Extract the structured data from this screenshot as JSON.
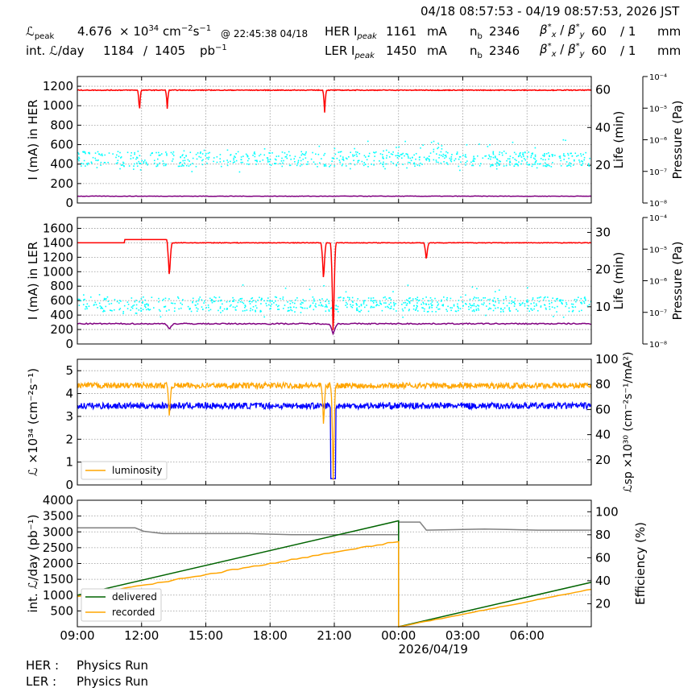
{
  "header": {
    "time_range": "04/18 08:57:53 - 04/19 08:57:53, 2026 JST",
    "lpeak_label": "ℒ",
    "lpeak_sub": "peak",
    "lpeak_value": "4.676",
    "lpeak_unit": "× 10",
    "lpeak_exp": "34",
    "lpeak_unit2": " cm",
    "lpeak_exp2": "−2",
    "lpeak_unit3": "s",
    "lpeak_exp3": "−1",
    "lpeak_time": "@ 22:45:38 04/18",
    "intl_label": "int. ℒ/day",
    "intl_value1": "1184",
    "intl_sep": "/",
    "intl_value2": "1405",
    "intl_unit": "pb",
    "intl_exp": "−1",
    "her_label": "HER I",
    "her_sub": "peak",
    "her_value": "1161",
    "her_unit": "mA",
    "ler_label": "LER I",
    "ler_sub": "peak",
    "ler_value": "1450",
    "ler_unit": "mA",
    "nb_label": "n",
    "nb_sub": "b",
    "her_nb": "2346",
    "ler_nb": "2346",
    "beta_label": "β*x / β*y",
    "her_beta1": "60",
    "her_beta2": "/ 1",
    "her_beta_unit": "mm",
    "ler_beta1": "60",
    "ler_beta2": "/ 1",
    "ler_beta_unit": "mm"
  },
  "footer": {
    "her_label": "HER :",
    "her_mode": "Physics Run",
    "ler_label": "LER :",
    "ler_mode": "Physics Run"
  },
  "colors": {
    "current": "#ff0000",
    "lifetime": "#00ffff",
    "pressure": "#800080",
    "luminosity": "#ffa500",
    "specific_lumi": "#0000ff",
    "delivered": "#006400",
    "recorded": "#ffa500",
    "efficiency": "#808080"
  },
  "chart_data": [
    {
      "type": "line",
      "name": "her",
      "ylabel": "I (mA) in HER",
      "ylabel_right": "Life (min)",
      "ylabel_pressure": "Pressure (Pa)",
      "ylim": [
        0,
        1300
      ],
      "yticks": [
        0,
        200,
        400,
        600,
        800,
        1000,
        1200
      ],
      "ylim_right": [
        0,
        67
      ],
      "yticks_right": [
        20,
        40,
        60
      ],
      "pressure_ticks": [
        "10⁻⁴",
        "10⁻⁵",
        "10⁻⁶",
        "10⁻⁷",
        "10⁻⁸"
      ],
      "x_hours_range": [
        0,
        24
      ],
      "current": {
        "baseline": 1160,
        "dips": [
          [
            2.9,
            930
          ],
          [
            4.2,
            970
          ],
          [
            11.55,
            930
          ]
        ]
      },
      "lifetime_min": {
        "center": 22,
        "spread": 8
      },
      "pressure_mA_equiv": {
        "baseline": 70
      }
    },
    {
      "type": "line",
      "name": "ler",
      "ylabel": "I (mA) in LER",
      "ylabel_right": "Life (min)",
      "ylabel_pressure": "Pressure (Pa)",
      "ylim": [
        0,
        1750
      ],
      "yticks": [
        0,
        200,
        400,
        600,
        800,
        1000,
        1200,
        1400,
        1600
      ],
      "ylim_right": [
        0,
        34
      ],
      "yticks_right": [
        10,
        20,
        30
      ],
      "pressure_ticks": [
        "10⁻⁴",
        "10⁻⁵",
        "10⁻⁶",
        "10⁻⁷",
        "10⁻⁸"
      ],
      "current": {
        "baseline": 1400,
        "dips": [
          [
            4.3,
            900
          ],
          [
            11.5,
            850
          ],
          [
            11.95,
            0
          ],
          [
            16.3,
            1150
          ]
        ]
      },
      "lifetime_min": {
        "center": 10,
        "spread": 4
      },
      "pressure_mA_equiv": {
        "baseline": 280
      }
    },
    {
      "type": "line",
      "name": "luminosity",
      "ylabel": "ℒ ×10³⁴ (cm⁻²s⁻¹)",
      "ylabel_right": "ℒsp ×10³⁰ (cm⁻²s⁻¹/mA²)",
      "ylim": [
        0,
        5.5
      ],
      "yticks": [
        0,
        1,
        2,
        3,
        4,
        5
      ],
      "ylim_right": [
        0,
        100
      ],
      "yticks_right": [
        20,
        40,
        60,
        80,
        100
      ],
      "legend": [
        "luminosity"
      ],
      "luminosity": {
        "baseline": 4.35,
        "dips": [
          [
            4.3,
            2.9
          ],
          [
            11.5,
            2.5
          ],
          [
            11.95,
            0
          ]
        ]
      },
      "specific_lumi": {
        "baseline": 63
      }
    },
    {
      "type": "line",
      "name": "integrated",
      "ylabel": "int. ℒ/day (pb⁻¹)",
      "ylabel_right": "Efficiency (%)",
      "ylim": [
        0,
        4000
      ],
      "yticks": [
        500,
        1000,
        1500,
        2000,
        2500,
        3000,
        3500,
        4000
      ],
      "ylim_right": [
        0,
        110
      ],
      "yticks_right": [
        20,
        40,
        60,
        80,
        100
      ],
      "legend": [
        "delivered",
        "recorded"
      ],
      "delivered": [
        [
          0,
          1000
        ],
        [
          15,
          3350
        ],
        [
          15,
          0
        ],
        [
          24,
          1405
        ]
      ],
      "recorded": [
        [
          0,
          950
        ],
        [
          15,
          2700
        ],
        [
          15,
          0
        ],
        [
          24,
          1184
        ]
      ],
      "efficiency_pct": [
        [
          0,
          86
        ],
        [
          2.7,
          86
        ],
        [
          3.1,
          83
        ],
        [
          4.0,
          81
        ],
        [
          8.0,
          81
        ],
        [
          10.0,
          80
        ],
        [
          15.0,
          80
        ],
        [
          15.0,
          91
        ],
        [
          16.0,
          91
        ],
        [
          16.3,
          84
        ],
        [
          19.0,
          85
        ],
        [
          21.5,
          84
        ],
        [
          24.0,
          84
        ]
      ]
    }
  ],
  "x_axis": {
    "ticks": [
      "09:00",
      "12:00",
      "15:00",
      "18:00",
      "21:00",
      "00:00",
      "03:00",
      "06:00"
    ],
    "date_label": "2026/04/19"
  }
}
